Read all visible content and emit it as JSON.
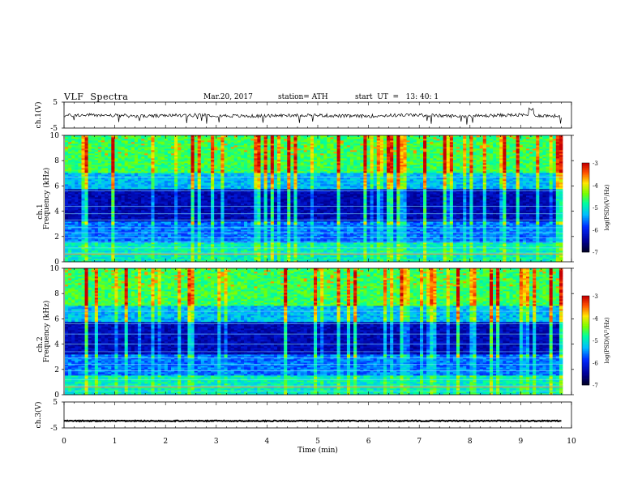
{
  "header": {
    "title": "VLF  Spectra",
    "date": "Mar.20, 2017",
    "station": "station= ATH",
    "start": "start  UT  =   13: 40: 1"
  },
  "chart_data": [
    {
      "type": "line",
      "ylabel": "ch.1(V)",
      "ylim": [
        -5,
        5
      ],
      "yticks": [
        "5",
        "-5"
      ],
      "xlim": [
        0,
        10
      ],
      "description_level": -0.2
    },
    {
      "type": "heatmap",
      "ylabel": "ch.1\nFrequency (kHz)",
      "ylim": [
        0,
        10
      ],
      "yticks": [
        "0",
        "2",
        "4",
        "6",
        "8",
        "10"
      ],
      "xlim": [
        0,
        10
      ],
      "colorbar": {
        "label": "log(PSD)(V²/Hz)",
        "ticks": [
          "-3",
          "-4",
          "-5",
          "-6",
          "-7"
        ],
        "range": [
          -7,
          -3
        ]
      }
    },
    {
      "type": "heatmap",
      "ylabel": "ch.2\nFrequency (kHz)",
      "ylim": [
        0,
        10
      ],
      "yticks": [
        "0",
        "2",
        "4",
        "6",
        "8",
        "10"
      ],
      "xlim": [
        0,
        10
      ],
      "colorbar": {
        "label": "log(PSD)(V²/Hz)",
        "ticks": [
          "-3",
          "-4",
          "-5",
          "-6",
          "-7"
        ],
        "range": [
          -7,
          -3
        ]
      }
    },
    {
      "type": "line",
      "ylabel": "ch.3(V)",
      "ylim": [
        -5,
        5
      ],
      "yticks": [
        "5",
        "-5"
      ],
      "xlim": [
        0,
        10
      ],
      "level": -2.3
    }
  ],
  "xaxis": {
    "label": "Time  (min)",
    "ticks": [
      "0",
      "1",
      "2",
      "3",
      "4",
      "5",
      "6",
      "7",
      "8",
      "9",
      "10"
    ]
  }
}
